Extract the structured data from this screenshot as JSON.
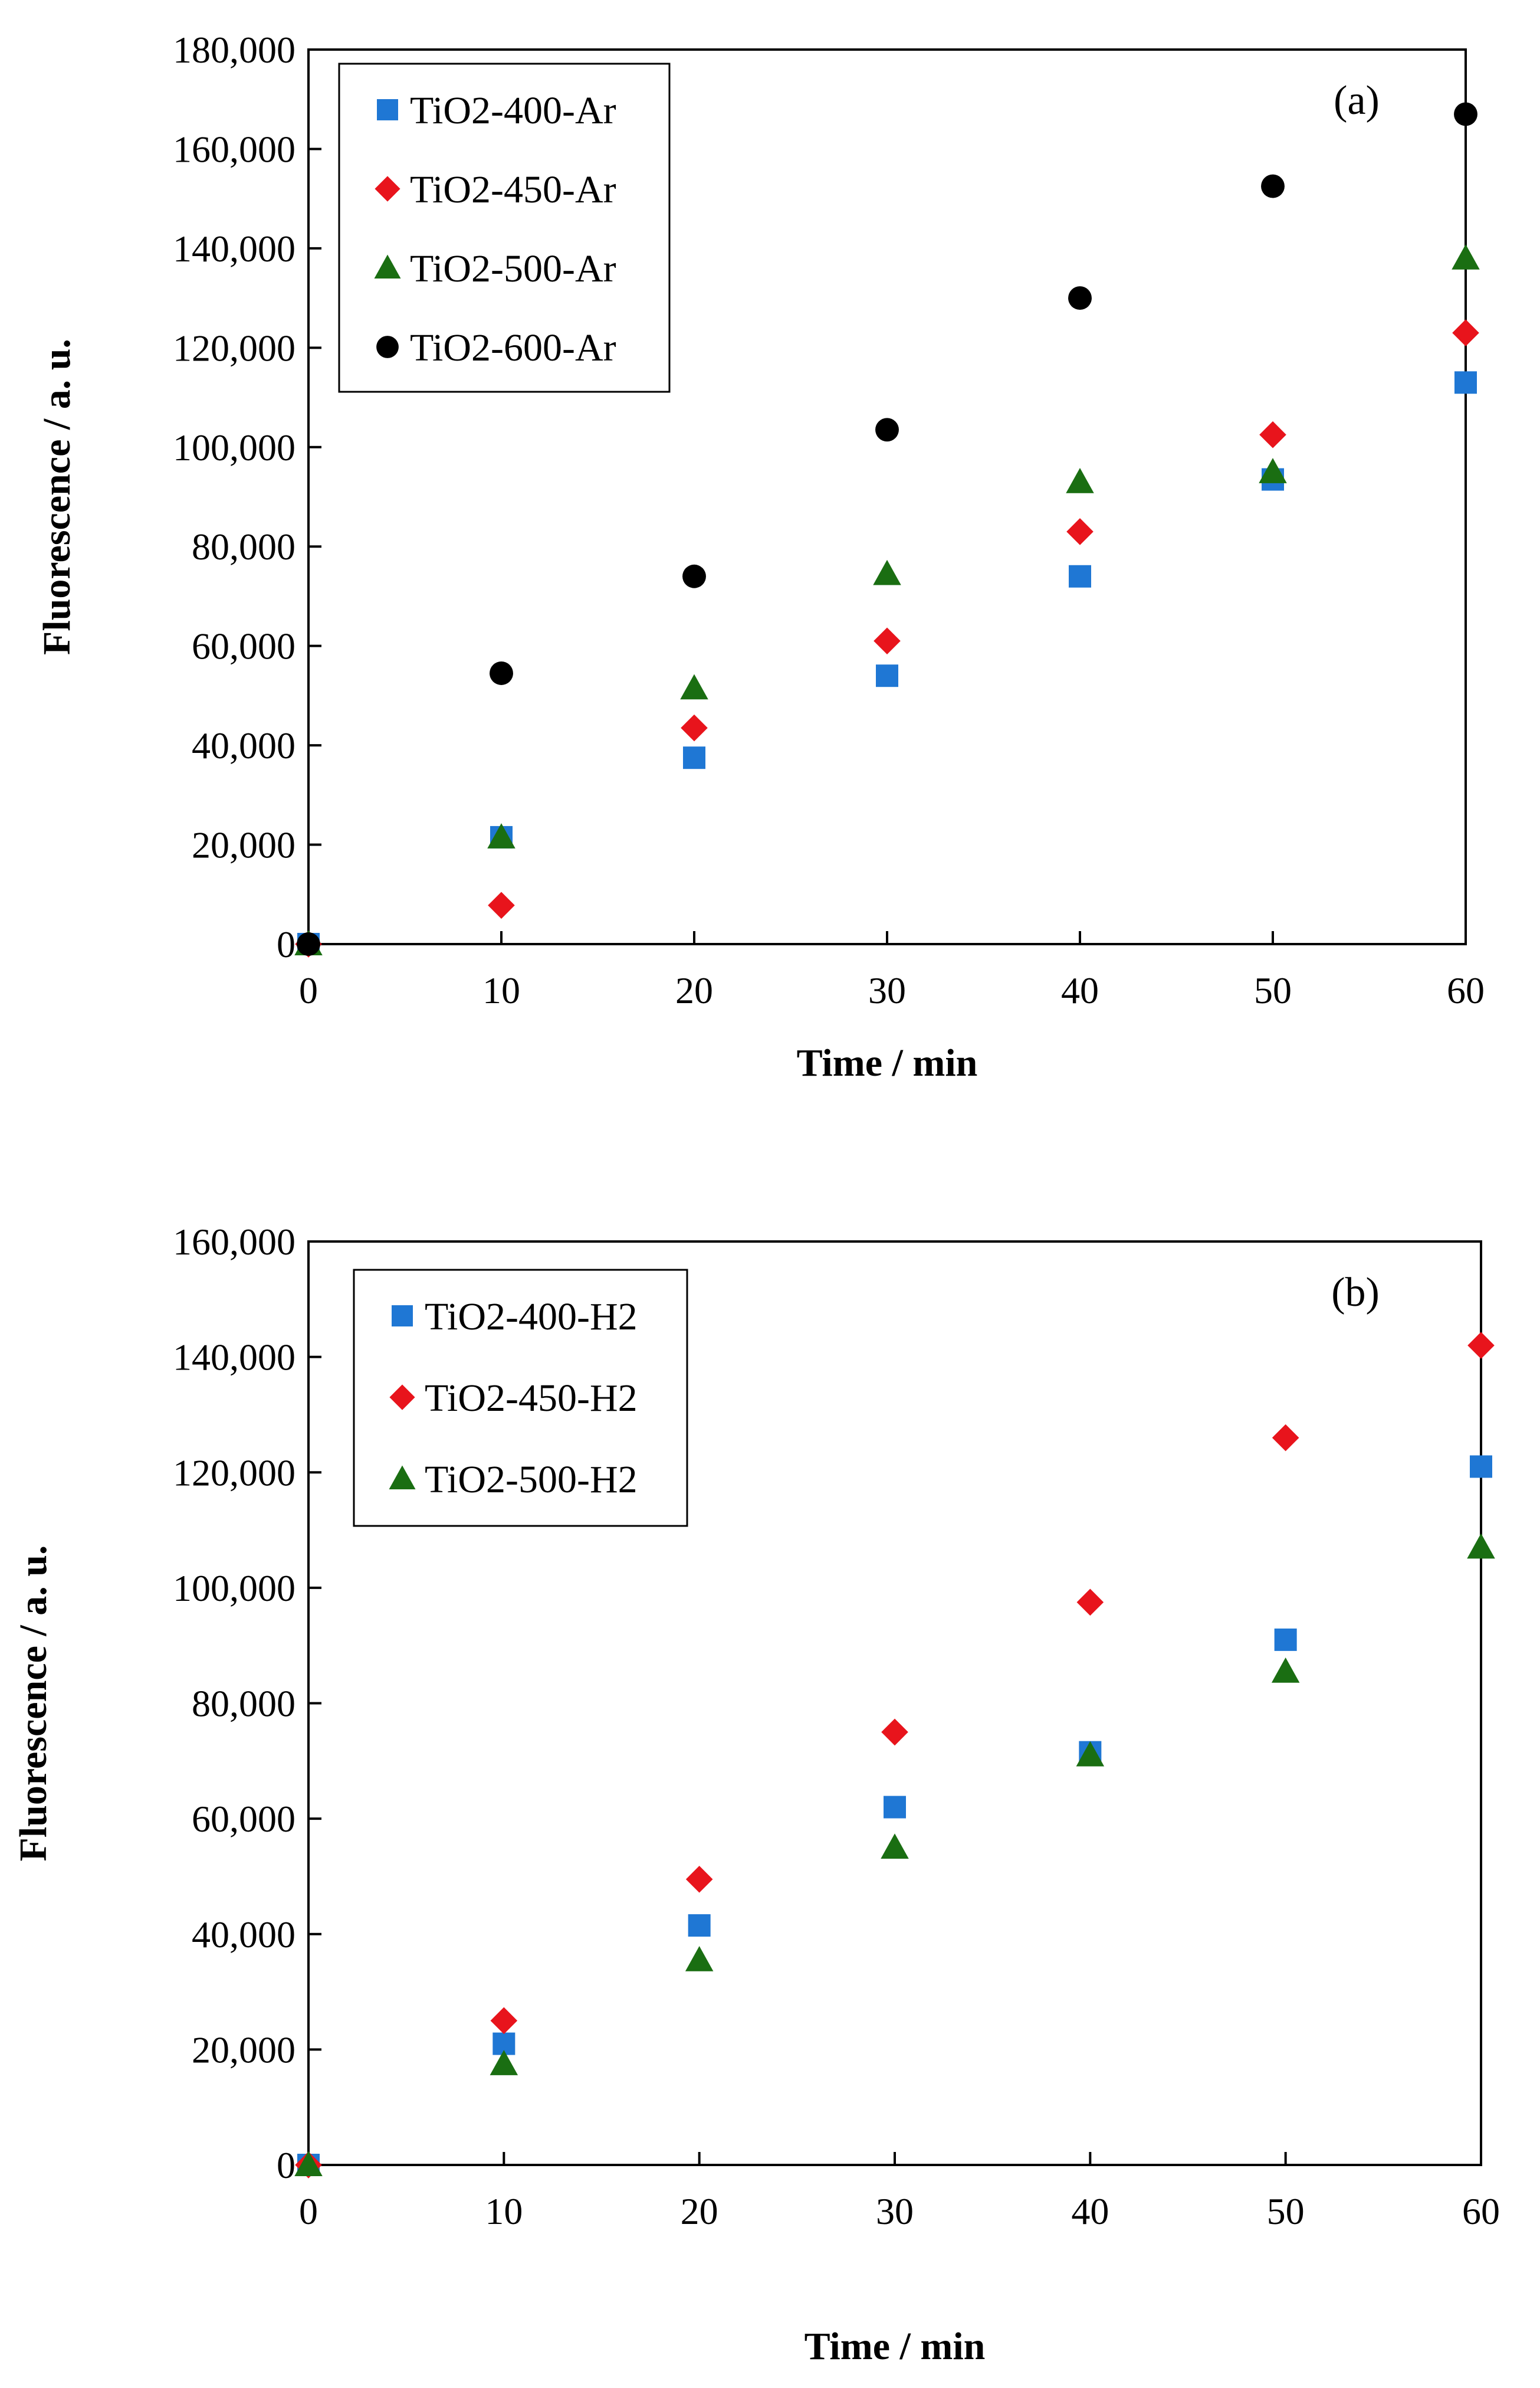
{
  "chart_data": [
    {
      "type": "scatter",
      "panel_label": "(a)",
      "xlabel": "Time / min",
      "ylabel": "Fluorescence / a. u.",
      "xlim": [
        0,
        60
      ],
      "ylim": [
        0,
        180000
      ],
      "x_ticks": [
        0,
        10,
        20,
        30,
        40,
        50,
        60
      ],
      "x_tick_labels": [
        "0",
        "10",
        "20",
        "30",
        "40",
        "50",
        "60"
      ],
      "y_ticks": [
        0,
        20000,
        40000,
        60000,
        80000,
        100000,
        120000,
        140000,
        160000,
        180000
      ],
      "y_tick_labels": [
        "0",
        "20,000",
        "40,000",
        "60,000",
        "80,000",
        "100,000",
        "120,000",
        "140,000",
        "160,000",
        "180,000"
      ],
      "grid": false,
      "legend_position": "top-left",
      "x": [
        0,
        10,
        20,
        30,
        40,
        50,
        60
      ],
      "series": [
        {
          "name": "TiO2-400-Ar",
          "marker": "square",
          "color": "#1f77d4",
          "values": [
            0,
            21500,
            37500,
            54000,
            74000,
            93500,
            113000
          ]
        },
        {
          "name": "TiO2-450-Ar",
          "marker": "diamond",
          "color": "#e8141c",
          "values": [
            0,
            7800,
            43500,
            61000,
            83000,
            102500,
            123000
          ]
        },
        {
          "name": "TiO2-500-Ar",
          "marker": "triangle",
          "color": "#1a6e12",
          "values": [
            0,
            21500,
            51500,
            74500,
            93000,
            95000,
            138000
          ]
        },
        {
          "name": "TiO2-600-Ar",
          "marker": "circle",
          "color": "#000000",
          "values": [
            0,
            54500,
            74000,
            103500,
            130000,
            152500,
            167000
          ]
        }
      ]
    },
    {
      "type": "scatter",
      "panel_label": "(b)",
      "xlabel": "Time / min",
      "ylabel": "Fluorescence / a. u.",
      "xlim": [
        0,
        60
      ],
      "ylim": [
        0,
        160000
      ],
      "x_ticks": [
        0,
        10,
        20,
        30,
        40,
        50,
        60
      ],
      "x_tick_labels": [
        "0",
        "10",
        "20",
        "30",
        "40",
        "50",
        "60"
      ],
      "y_ticks": [
        0,
        20000,
        40000,
        60000,
        80000,
        100000,
        120000,
        140000,
        160000
      ],
      "y_tick_labels": [
        "0",
        "20,000",
        "40,000",
        "60,000",
        "80,000",
        "100,000",
        "120,000",
        "140,000",
        "160,000"
      ],
      "grid": false,
      "legend_position": "top-left",
      "x": [
        0,
        10,
        20,
        30,
        40,
        50,
        60
      ],
      "series": [
        {
          "name": "TiO2-400-H2",
          "marker": "square",
          "color": "#1f77d4",
          "values": [
            0,
            21000,
            41500,
            62000,
            71500,
            91000,
            121000
          ]
        },
        {
          "name": "TiO2-450-H2",
          "marker": "diamond",
          "color": "#e8141c",
          "values": [
            0,
            25000,
            49500,
            75000,
            97500,
            126000,
            142000
          ]
        },
        {
          "name": "TiO2-500-H2",
          "marker": "triangle",
          "color": "#1a6e12",
          "values": [
            0,
            17500,
            35500,
            55000,
            71000,
            85500,
            107000
          ]
        }
      ]
    }
  ]
}
